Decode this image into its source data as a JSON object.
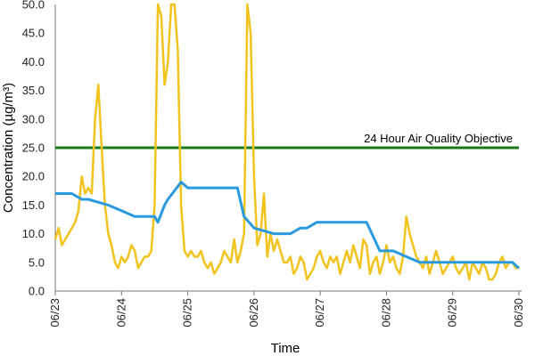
{
  "chart_data": {
    "type": "line",
    "title": "",
    "xlabel": "Time",
    "ylabel": "Concentration (µg/m³)",
    "ylim": [
      0,
      50
    ],
    "y_ticks": [
      "0.0",
      "5.0",
      "10.0",
      "15.0",
      "20.0",
      "25.0",
      "30.0",
      "35.0",
      "40.0",
      "45.0",
      "50.0"
    ],
    "x_tick_labels": [
      "06/23",
      "06/24",
      "06/25",
      "06/26",
      "06/27",
      "06/28",
      "06/29",
      "06/30"
    ],
    "grid": false,
    "colors": {
      "hourly": "#f2c31d",
      "daily": "#2a9ae0",
      "objective": "#1a7a1a"
    },
    "objective": {
      "value": 25.0,
      "label": "24 Hour Air Quality Objective"
    },
    "series": [
      {
        "type": "hourly",
        "x": [
          6,
          6.05,
          6.1,
          6.15,
          6.2,
          6.25,
          6.3,
          6.35,
          6.4,
          6.45,
          6.5,
          6.55,
          6.6,
          6.65,
          6.7,
          6.75,
          6.8,
          6.85,
          6.9,
          6.95,
          7.0,
          7.05,
          7.1,
          7.15,
          7.2,
          7.25,
          7.3,
          7.35,
          7.4,
          7.45,
          7.5,
          7.55,
          7.6,
          7.65,
          7.7,
          7.75,
          7.8,
          7.85,
          7.9,
          7.95,
          8.0,
          8.05,
          8.1,
          8.15,
          8.2,
          8.25,
          8.3,
          8.35,
          8.4,
          8.45,
          8.5,
          8.55,
          8.6,
          8.65,
          8.7,
          8.75,
          8.8,
          8.85,
          8.9,
          8.95,
          9.0,
          9.05,
          9.1,
          9.15,
          9.2,
          9.25,
          9.3,
          9.35,
          9.4,
          9.45,
          9.5,
          9.55,
          9.6,
          9.65,
          9.7,
          9.75,
          9.8,
          9.85,
          9.9,
          9.95,
          10.0,
          10.05,
          10.1,
          10.15,
          10.2,
          10.25,
          10.3,
          10.35,
          10.4,
          10.45,
          10.5,
          10.55,
          10.6,
          10.65,
          10.7,
          10.75,
          10.8,
          10.85,
          10.9,
          10.95,
          11.0,
          11.05,
          11.1,
          11.15,
          11.2,
          11.25,
          11.3,
          11.35,
          11.4,
          11.45,
          11.5,
          11.55,
          11.6,
          11.65,
          11.7,
          11.75,
          11.8,
          11.85,
          11.9,
          11.95,
          12.0,
          12.05,
          12.1,
          12.15,
          12.2,
          12.25,
          12.3,
          12.35,
          12.4,
          12.45,
          12.5,
          12.55,
          12.6,
          12.65,
          12.7,
          12.75,
          12.8,
          12.85,
          12.9,
          12.95,
          13.0
        ],
        "values": [
          9,
          11,
          8,
          9,
          10,
          11,
          12,
          14,
          20,
          17,
          18,
          17,
          30,
          36,
          25,
          15,
          10,
          8,
          5,
          4,
          6,
          5,
          6,
          8,
          7,
          4,
          5,
          6,
          6,
          7,
          15,
          52,
          48,
          36,
          40,
          52,
          60,
          42,
          15,
          7,
          6,
          7,
          6,
          6,
          7,
          5,
          4,
          5,
          3,
          4,
          5,
          7,
          6,
          5,
          9,
          5,
          7,
          10,
          52,
          45,
          20,
          8,
          10,
          17,
          6,
          10,
          7,
          9,
          7,
          5,
          5,
          6,
          3,
          4,
          6,
          5,
          2,
          3,
          4,
          6,
          7,
          5,
          4,
          6,
          5,
          6,
          3,
          5,
          7,
          5,
          8,
          6,
          4,
          9,
          8,
          3,
          5,
          6,
          3,
          5,
          8,
          5,
          6,
          4,
          3,
          6,
          13,
          10,
          8,
          6,
          5,
          4,
          6,
          3,
          5,
          7,
          5,
          3,
          4,
          5,
          6,
          4,
          3,
          4,
          5,
          2,
          5,
          4,
          3,
          5,
          4,
          2,
          2,
          3,
          5,
          6,
          4,
          5,
          5,
          4,
          4
        ]
      },
      {
        "type": "daily",
        "x": [
          6,
          6.25,
          6.4,
          6.5,
          6.8,
          7.0,
          7.2,
          7.4,
          7.5,
          7.55,
          7.65,
          7.7,
          7.9,
          8.0,
          8.15,
          8.3,
          8.5,
          8.75,
          8.85,
          9.0,
          9.3,
          9.55,
          9.7,
          9.8,
          9.95,
          10.2,
          10.5,
          10.7,
          10.9,
          11.1,
          11.3,
          11.5,
          11.7,
          11.9,
          12.1,
          12.3,
          12.5,
          12.7,
          12.9,
          13.0
        ],
        "values": [
          17,
          17,
          16,
          16,
          15,
          14,
          13,
          13,
          13,
          12,
          15,
          16,
          19,
          18,
          18,
          18,
          18,
          18,
          13,
          11,
          10,
          10,
          11,
          11,
          12,
          12,
          12,
          12,
          7,
          7,
          6,
          5,
          5,
          5,
          5,
          5,
          5,
          5,
          5,
          4
        ]
      }
    ]
  }
}
